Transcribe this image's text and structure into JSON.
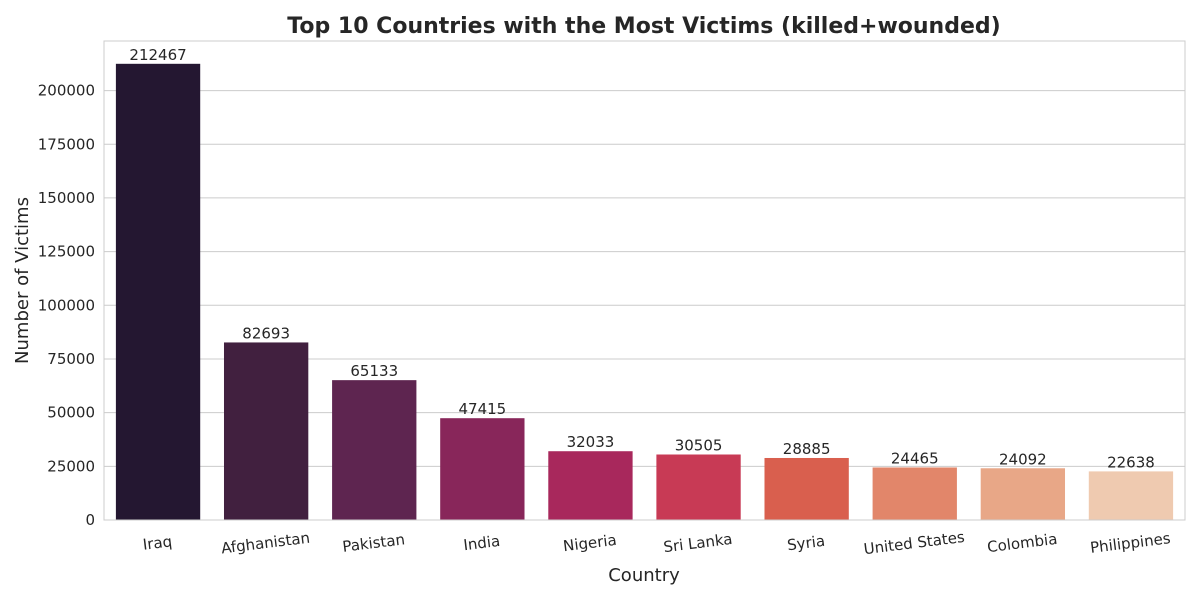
{
  "chart_data": {
    "type": "bar",
    "title": "Top 10 Countries with the Most Victims (killed+wounded)",
    "xlabel": "Country",
    "ylabel": "Number of Victims",
    "categories": [
      "Iraq",
      "Afghanistan",
      "Pakistan",
      "India",
      "Nigeria",
      "Sri Lanka",
      "Syria",
      "United States",
      "Colombia",
      "Philippines"
    ],
    "values": [
      212467,
      82693,
      65133,
      47415,
      32033,
      30505,
      28885,
      24465,
      24092,
      22638
    ],
    "data_labels": [
      "212467",
      "82693",
      "65133",
      "47415",
      "32033",
      "30505",
      "28885",
      "24465",
      "24092",
      "22638"
    ],
    "ylim": [
      0,
      223090
    ],
    "yticks": [
      0,
      25000,
      50000,
      75000,
      100000,
      125000,
      150000,
      175000,
      200000
    ],
    "ytick_labels": [
      "0",
      "25000",
      "50000",
      "75000",
      "100000",
      "125000",
      "150000",
      "175000",
      "200000"
    ],
    "grid": "horizontal",
    "colors": [
      "#241731",
      "#41203f",
      "#5e2550",
      "#88265a",
      "#a8285c",
      "#c83a55",
      "#d95f4e",
      "#e2866a",
      "#e8a787",
      "#efcab0"
    ]
  }
}
